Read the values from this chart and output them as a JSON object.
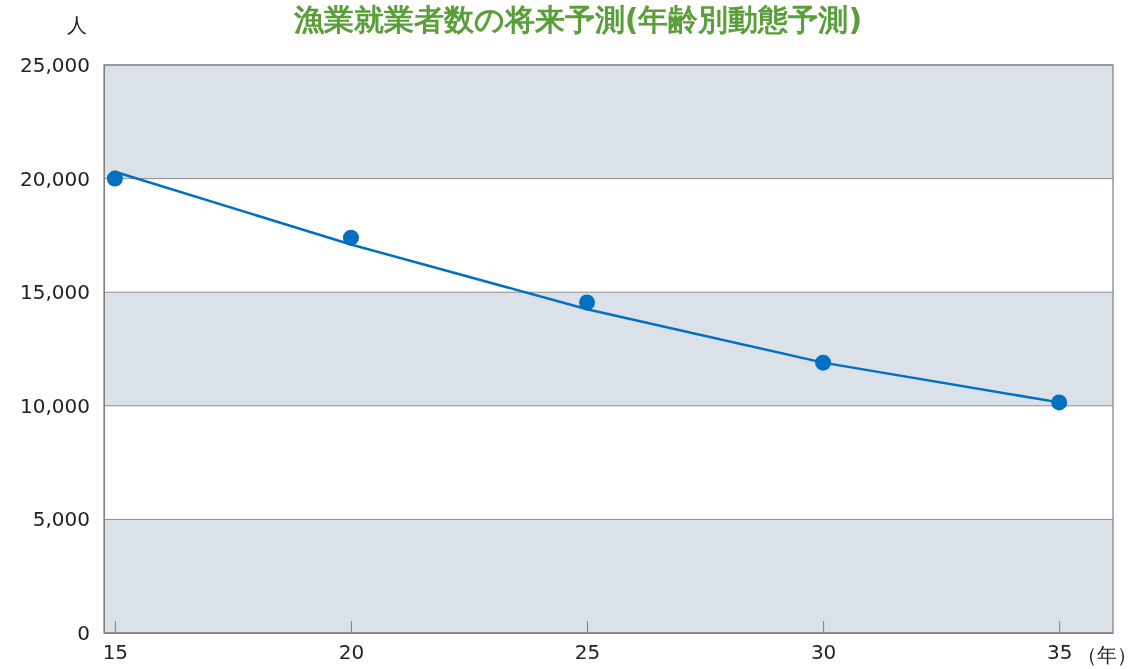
{
  "chart_data": {
    "type": "scatter",
    "title": "漁業就業者数の将来予測(年齢別動態予測)",
    "xlabel": "（年）",
    "ylabel": "人",
    "x": [
      15,
      20,
      25,
      30,
      35
    ],
    "series": [
      {
        "type": "line",
        "color": "#0070c0",
        "values": [
          20300,
          17100,
          14250,
          11900,
          10150
        ],
        "marker": "none"
      },
      {
        "color": "#0070c0",
        "values": [
          20000,
          17400,
          14550,
          11900,
          10150
        ],
        "marker": "circle"
      }
    ],
    "xlim": [
      14.77,
      36.14
    ],
    "xticks": [
      15,
      20,
      25,
      30,
      35
    ],
    "ylim": [
      0,
      25000
    ],
    "yticks": [
      {
        "value": 0,
        "label": "0"
      },
      {
        "value": 5000,
        "label": "5,000"
      },
      {
        "value": 10000,
        "label": "10,000"
      },
      {
        "value": 15000,
        "label": "15,000"
      },
      {
        "value": 20000,
        "label": "20,000"
      },
      {
        "value": 25000,
        "label": "25,000"
      }
    ],
    "bands": [
      {
        "axis": "y",
        "from": 0,
        "to": 5000,
        "color": "#dae1e8"
      },
      {
        "axis": "y",
        "from": 10000,
        "to": 15000,
        "color": "#dae1e8"
      },
      {
        "axis": "y",
        "from": 20000,
        "to": 25000,
        "color": "#dae1e8"
      }
    ],
    "grid": "y"
  }
}
